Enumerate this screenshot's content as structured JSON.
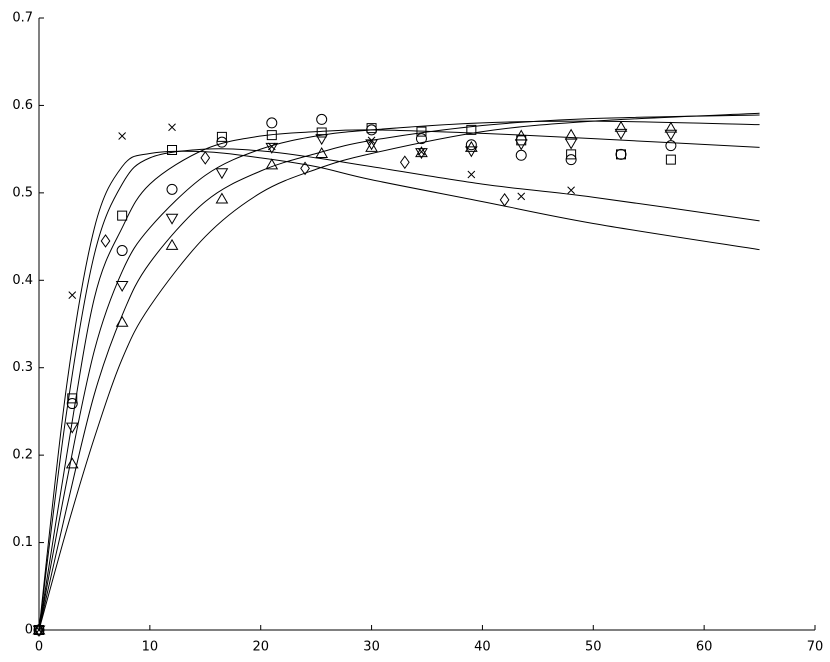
{
  "chart_data": {
    "type": "scatter",
    "color": "#000000",
    "xlim": [
      0,
      70
    ],
    "ylim": [
      0,
      0.7
    ],
    "xticks": [
      0,
      10,
      20,
      30,
      40,
      50,
      60,
      70
    ],
    "yticks": [
      0,
      0.1,
      0.2,
      0.3,
      0.4,
      0.5,
      0.6,
      0.7
    ],
    "series": [
      {
        "marker": "cross",
        "x": [
          0,
          3,
          7.5,
          12,
          21,
          30,
          34.5,
          39,
          43.5,
          48
        ],
        "values": [
          0,
          0.383,
          0.565,
          0.575,
          0.553,
          0.56,
          0.547,
          0.521,
          0.496,
          0.503
        ]
      },
      {
        "marker": "diamond",
        "x": [
          0,
          6,
          15,
          24,
          33,
          42
        ],
        "values": [
          0,
          0.445,
          0.54,
          0.528,
          0.535,
          0.492
        ]
      },
      {
        "marker": "square",
        "x": [
          0,
          3,
          7.5,
          12,
          16.5,
          21,
          25.5,
          30,
          34.5,
          39,
          43.5,
          48,
          52.5,
          57
        ],
        "values": [
          0,
          0.265,
          0.474,
          0.549,
          0.564,
          0.566,
          0.569,
          0.574,
          0.57,
          0.572,
          0.56,
          0.544,
          0.544,
          0.538
        ]
      },
      {
        "marker": "circle",
        "x": [
          0,
          3,
          7.5,
          12,
          16.5,
          21,
          25.5,
          30,
          34.5,
          39,
          43.5,
          48,
          52.5,
          57
        ],
        "values": [
          0,
          0.259,
          0.434,
          0.504,
          0.558,
          0.58,
          0.584,
          0.572,
          0.562,
          0.555,
          0.543,
          0.538,
          0.544,
          0.554
        ]
      },
      {
        "marker": "triangle-down",
        "x": [
          0,
          3,
          7.5,
          12,
          16.5,
          21,
          25.5,
          30,
          34.5,
          39,
          43.5,
          48,
          52.5,
          57
        ],
        "values": [
          0,
          0.232,
          0.394,
          0.471,
          0.523,
          0.552,
          0.562,
          0.556,
          0.546,
          0.548,
          0.556,
          0.557,
          0.568,
          0.567
        ]
      },
      {
        "marker": "triangle-up",
        "x": [
          0,
          3,
          7.5,
          12,
          16.5,
          21,
          25.5,
          30,
          34.5,
          39,
          43.5,
          48,
          52.5,
          57
        ],
        "values": [
          0,
          0.19,
          0.352,
          0.44,
          0.493,
          0.532,
          0.545,
          0.552,
          0.546,
          0.552,
          0.565,
          0.566,
          0.575,
          0.574
        ]
      }
    ],
    "curves": [
      {
        "x": [
          0,
          2.5,
          5,
          7.5,
          10,
          15,
          20,
          25,
          30,
          40,
          50,
          65
        ],
        "values": [
          0,
          0.28,
          0.46,
          0.53,
          0.545,
          0.547,
          0.54,
          0.53,
          0.515,
          0.49,
          0.465,
          0.435
        ]
      },
      {
        "x": [
          0,
          2.5,
          5,
          7.5,
          10,
          15,
          20,
          25,
          30,
          40,
          50,
          65
        ],
        "values": [
          0,
          0.25,
          0.43,
          0.51,
          0.54,
          0.55,
          0.548,
          0.54,
          0.53,
          0.51,
          0.495,
          0.468
        ]
      },
      {
        "x": [
          0,
          2.5,
          5,
          7.5,
          10,
          15,
          20,
          25,
          30,
          40,
          50,
          65
        ],
        "values": [
          0,
          0.2,
          0.38,
          0.46,
          0.51,
          0.55,
          0.565,
          0.57,
          0.572,
          0.568,
          0.562,
          0.552
        ]
      },
      {
        "x": [
          0,
          2.5,
          5,
          7.5,
          10,
          15,
          20,
          25,
          30,
          40,
          50,
          65
        ],
        "values": [
          0,
          0.17,
          0.32,
          0.41,
          0.46,
          0.52,
          0.55,
          0.565,
          0.572,
          0.58,
          0.582,
          0.578
        ]
      },
      {
        "x": [
          0,
          2.5,
          5,
          7.5,
          10,
          15,
          20,
          25,
          30,
          40,
          50,
          65
        ],
        "values": [
          0,
          0.14,
          0.27,
          0.36,
          0.42,
          0.49,
          0.525,
          0.545,
          0.56,
          0.577,
          0.585,
          0.589
        ]
      },
      {
        "x": [
          0,
          2.5,
          5,
          7.5,
          10,
          15,
          20,
          25,
          30,
          40,
          50,
          65
        ],
        "values": [
          0,
          0.115,
          0.22,
          0.31,
          0.37,
          0.45,
          0.5,
          0.527,
          0.545,
          0.57,
          0.582,
          0.591
        ]
      }
    ]
  }
}
